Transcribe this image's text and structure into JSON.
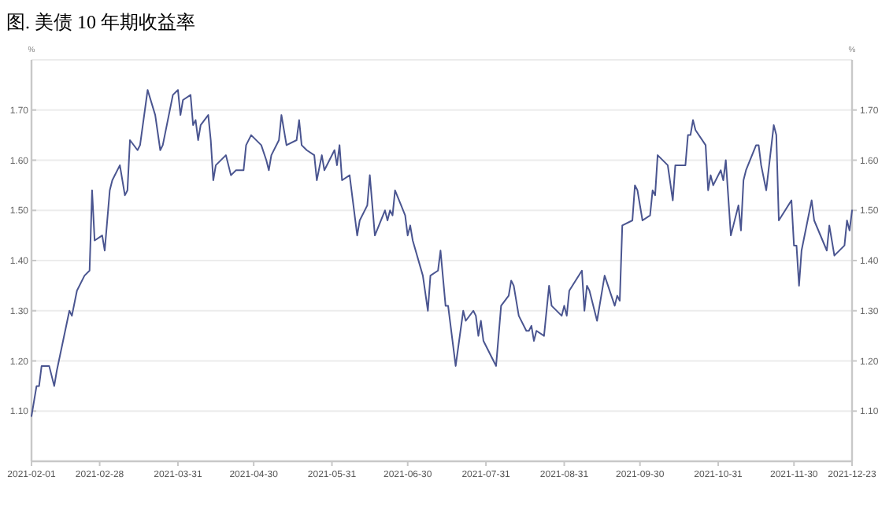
{
  "chart_data": {
    "type": "line",
    "title": "图. 美债 10 年期收益率",
    "ylabel": "%",
    "y2label": "%",
    "xlim": [
      "2021-02-01",
      "2021-12-23"
    ],
    "xticks": [
      "2021-02-01",
      "2021-02-28",
      "2021-03-31",
      "2021-04-30",
      "2021-05-31",
      "2021-06-30",
      "2021-07-31",
      "2021-08-31",
      "2021-09-30",
      "2021-10-31",
      "2021-11-30",
      "2021-12-23"
    ],
    "ylim": [
      1.0,
      1.8
    ],
    "yticks": [
      {
        "value": 1.1,
        "label": "1.10"
      },
      {
        "value": 1.2,
        "label": "1.20"
      },
      {
        "value": 1.3,
        "label": "1.30"
      },
      {
        "value": 1.4,
        "label": "1.40"
      },
      {
        "value": 1.5,
        "label": "1.50"
      },
      {
        "value": 1.6,
        "label": "1.60"
      },
      {
        "value": 1.7,
        "label": "1.70"
      }
    ],
    "y2lim": [
      1.0,
      1.8
    ],
    "y2ticks": [
      {
        "value": 1.1,
        "label": "1.10"
      },
      {
        "value": 1.2,
        "label": "1.20"
      },
      {
        "value": 1.3,
        "label": "1.30"
      },
      {
        "value": 1.4,
        "label": "1.40"
      },
      {
        "value": 1.5,
        "label": "1.50"
      },
      {
        "value": 1.6,
        "label": "1.60"
      },
      {
        "value": 1.7,
        "label": "1.70"
      }
    ],
    "grid": "y",
    "marker": "none",
    "line_style": "solid",
    "series": [
      {
        "color": "#4a5590",
        "x": [
          "2021-02-01",
          "2021-02-03",
          "2021-02-04",
          "2021-02-05",
          "2021-02-08",
          "2021-02-10",
          "2021-02-11",
          "2021-02-16",
          "2021-02-17",
          "2021-02-19",
          "2021-02-22",
          "2021-02-24",
          "2021-02-25",
          "2021-02-26",
          "2021-03-01",
          "2021-03-02",
          "2021-03-04",
          "2021-03-05",
          "2021-03-08",
          "2021-03-10",
          "2021-03-11",
          "2021-03-12",
          "2021-03-15",
          "2021-03-16",
          "2021-03-19",
          "2021-03-22",
          "2021-03-24",
          "2021-03-25",
          "2021-03-29",
          "2021-03-31",
          "2021-04-01",
          "2021-04-02",
          "2021-04-05",
          "2021-04-06",
          "2021-04-07",
          "2021-04-08",
          "2021-04-09",
          "2021-04-12",
          "2021-04-13",
          "2021-04-14",
          "2021-04-15",
          "2021-04-19",
          "2021-04-21",
          "2021-04-23",
          "2021-04-26",
          "2021-04-27",
          "2021-04-29",
          "2021-05-03",
          "2021-05-05",
          "2021-05-06",
          "2021-05-07",
          "2021-05-10",
          "2021-05-11",
          "2021-05-13",
          "2021-05-17",
          "2021-05-18",
          "2021-05-19",
          "2021-05-21",
          "2021-05-24",
          "2021-05-25",
          "2021-05-27",
          "2021-05-28",
          "2021-06-01",
          "2021-06-02",
          "2021-06-03",
          "2021-06-04",
          "2021-06-07",
          "2021-06-10",
          "2021-06-11",
          "2021-06-14",
          "2021-06-15",
          "2021-06-17",
          "2021-06-21",
          "2021-06-22",
          "2021-06-23",
          "2021-06-24",
          "2021-06-25",
          "2021-06-29",
          "2021-06-30",
          "2021-07-01",
          "2021-07-02",
          "2021-07-06",
          "2021-07-08",
          "2021-07-09",
          "2021-07-12",
          "2021-07-13",
          "2021-07-15",
          "2021-07-16",
          "2021-07-19",
          "2021-07-22",
          "2021-07-23",
          "2021-07-26",
          "2021-07-27",
          "2021-07-28",
          "2021-07-29",
          "2021-07-30",
          "2021-08-03",
          "2021-08-04",
          "2021-08-06",
          "2021-08-09",
          "2021-08-10",
          "2021-08-11",
          "2021-08-13",
          "2021-08-16",
          "2021-08-17",
          "2021-08-18",
          "2021-08-19",
          "2021-08-20",
          "2021-08-23",
          "2021-08-25",
          "2021-08-26",
          "2021-08-30",
          "2021-08-31",
          "2021-09-01",
          "2021-09-02",
          "2021-09-07",
          "2021-09-08",
          "2021-09-09",
          "2021-09-10",
          "2021-09-13",
          "2021-09-16",
          "2021-09-20",
          "2021-09-21",
          "2021-09-22",
          "2021-09-23",
          "2021-09-27",
          "2021-09-28",
          "2021-09-29",
          "2021-10-01",
          "2021-10-04",
          "2021-10-05",
          "2021-10-06",
          "2021-10-07",
          "2021-10-11",
          "2021-10-13",
          "2021-10-14",
          "2021-10-18",
          "2021-10-19",
          "2021-10-20",
          "2021-10-21",
          "2021-10-22",
          "2021-10-26",
          "2021-10-27",
          "2021-10-28",
          "2021-10-29",
          "2021-11-01",
          "2021-11-02",
          "2021-11-03",
          "2021-11-05",
          "2021-11-08",
          "2021-11-09",
          "2021-11-10",
          "2021-11-11",
          "2021-11-15",
          "2021-11-16",
          "2021-11-17",
          "2021-11-19",
          "2021-11-22",
          "2021-11-23",
          "2021-11-24",
          "2021-11-29",
          "2021-11-30",
          "2021-12-01",
          "2021-12-02",
          "2021-12-03",
          "2021-12-07",
          "2021-12-08",
          "2021-12-13",
          "2021-12-14",
          "2021-12-16",
          "2021-12-20",
          "2021-12-21",
          "2021-12-22",
          "2021-12-23"
        ],
        "values": [
          1.09,
          1.15,
          1.15,
          1.19,
          1.19,
          1.15,
          1.18,
          1.3,
          1.29,
          1.34,
          1.37,
          1.38,
          1.54,
          1.44,
          1.45,
          1.42,
          1.54,
          1.56,
          1.59,
          1.53,
          1.54,
          1.64,
          1.62,
          1.63,
          1.74,
          1.69,
          1.62,
          1.63,
          1.73,
          1.74,
          1.69,
          1.72,
          1.73,
          1.67,
          1.68,
          1.64,
          1.67,
          1.69,
          1.64,
          1.56,
          1.59,
          1.61,
          1.57,
          1.58,
          1.58,
          1.63,
          1.65,
          1.63,
          1.6,
          1.58,
          1.61,
          1.64,
          1.69,
          1.63,
          1.64,
          1.68,
          1.63,
          1.62,
          1.61,
          1.56,
          1.61,
          1.58,
          1.62,
          1.59,
          1.63,
          1.56,
          1.57,
          1.45,
          1.48,
          1.51,
          1.57,
          1.45,
          1.5,
          1.48,
          1.5,
          1.49,
          1.54,
          1.49,
          1.45,
          1.47,
          1.44,
          1.37,
          1.3,
          1.37,
          1.38,
          1.42,
          1.31,
          1.31,
          1.19,
          1.3,
          1.28,
          1.3,
          1.29,
          1.25,
          1.28,
          1.24,
          1.2,
          1.19,
          1.31,
          1.33,
          1.36,
          1.35,
          1.29,
          1.26,
          1.26,
          1.27,
          1.24,
          1.26,
          1.25,
          1.35,
          1.31,
          1.29,
          1.31,
          1.29,
          1.34,
          1.38,
          1.3,
          1.35,
          1.34,
          1.28,
          1.37,
          1.31,
          1.33,
          1.32,
          1.47,
          1.48,
          1.55,
          1.54,
          1.48,
          1.49,
          1.54,
          1.53,
          1.61,
          1.59,
          1.52,
          1.59,
          1.59,
          1.65,
          1.65,
          1.68,
          1.66,
          1.63,
          1.54,
          1.57,
          1.55,
          1.58,
          1.56,
          1.6,
          1.45,
          1.51,
          1.46,
          1.56,
          1.58,
          1.63,
          1.63,
          1.59,
          1.54,
          1.67,
          1.65,
          1.48,
          1.52,
          1.43,
          1.43,
          1.35,
          1.42,
          1.52,
          1.48,
          1.42,
          1.47,
          1.41,
          1.43,
          1.48,
          1.46,
          1.5
        ]
      }
    ]
  }
}
